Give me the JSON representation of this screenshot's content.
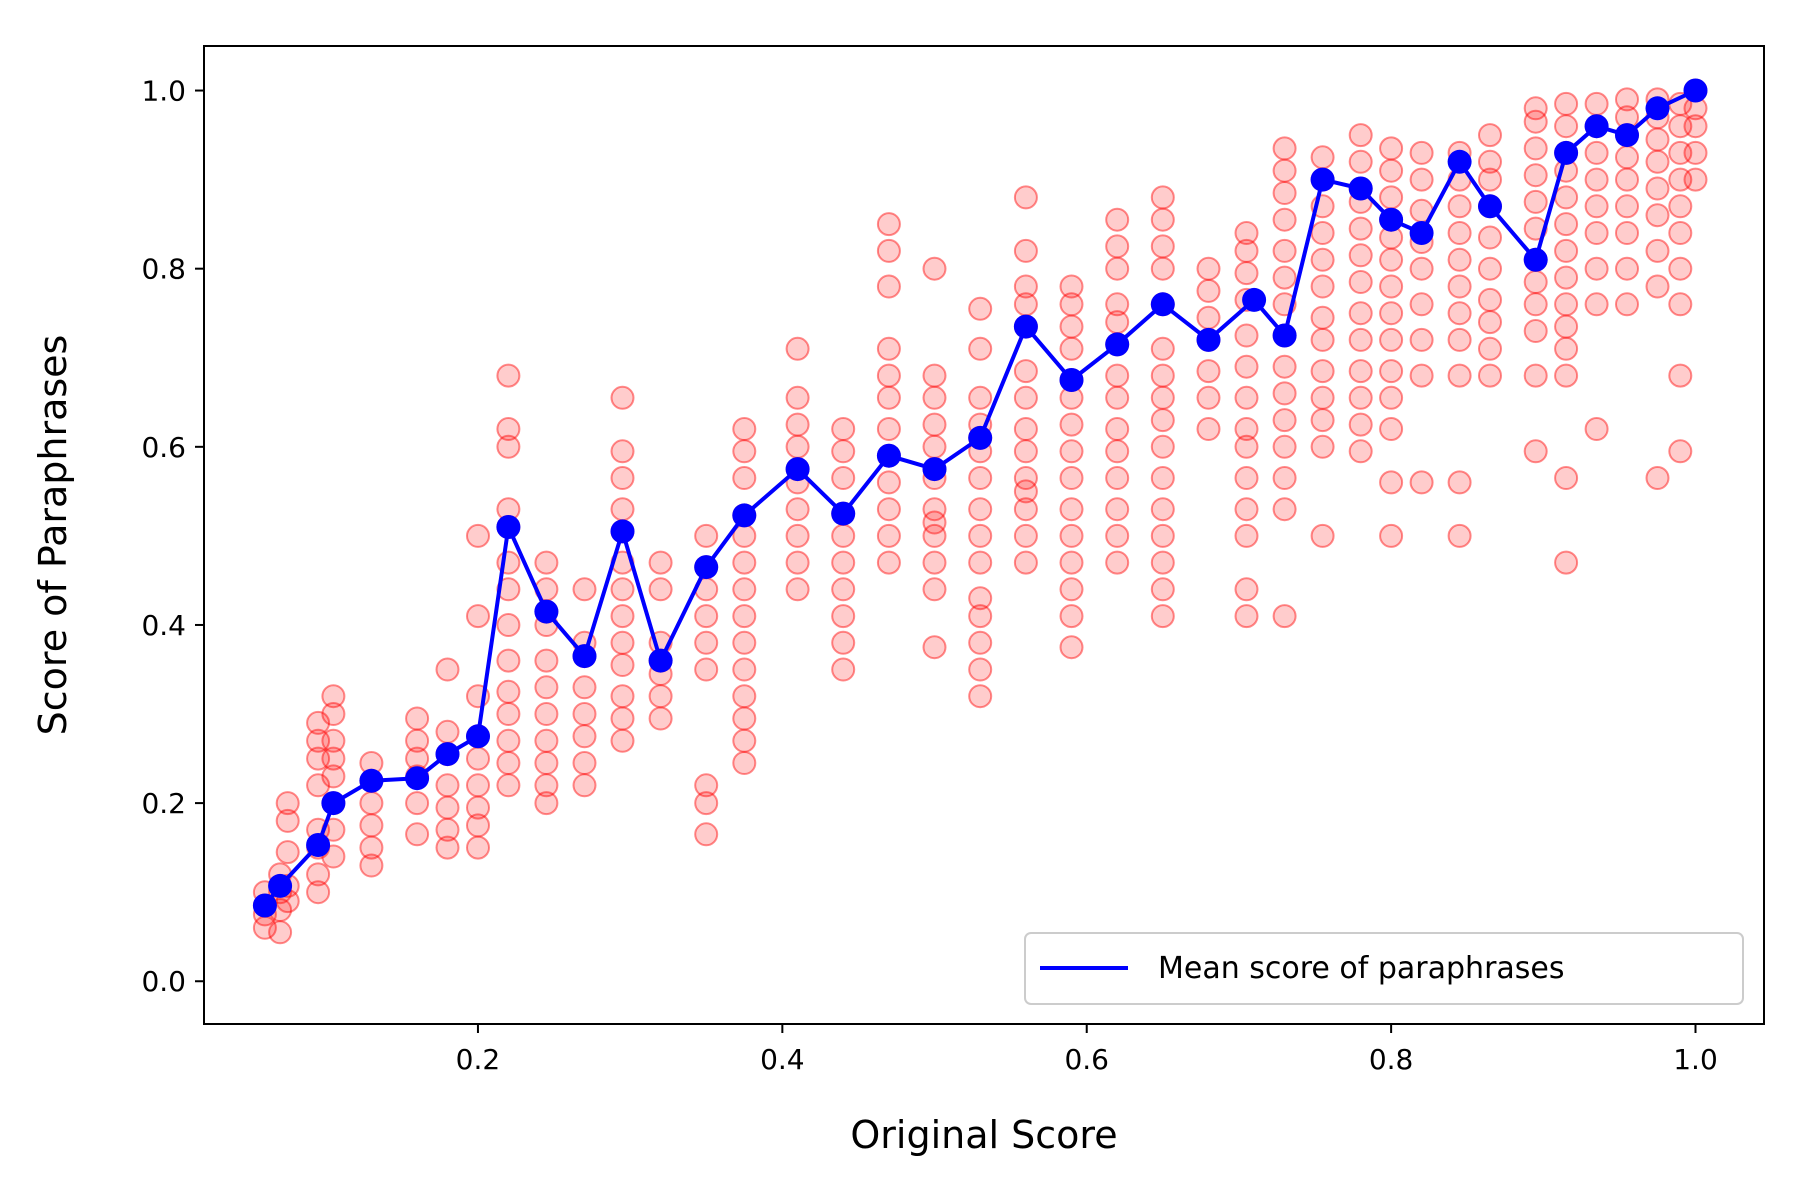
{
  "chart_data": {
    "type": "scatter",
    "xlabel": "Original Score",
    "ylabel": "Score of Paraphrases",
    "xlim": [
      0.02,
      1.045
    ],
    "ylim": [
      -0.048,
      1.05
    ],
    "xticks": [
      "0.2",
      "0.4",
      "0.6",
      "0.8",
      "1.0"
    ],
    "yticks": [
      "0.0",
      "0.2",
      "0.4",
      "0.6",
      "0.8",
      "1.0"
    ],
    "grid": false,
    "legend": {
      "position": "bottom-right",
      "entries": [
        "Mean score of paraphrases"
      ]
    },
    "colors": {
      "scatter": "#ff0000",
      "mean_line": "#0000ff"
    },
    "series": [
      {
        "name": "Mean score of paraphrases",
        "x": [
          0.06,
          0.07,
          0.095,
          0.105,
          0.13,
          0.16,
          0.18,
          0.2,
          0.22,
          0.245,
          0.27,
          0.295,
          0.32,
          0.35,
          0.375,
          0.41,
          0.44,
          0.47,
          0.5,
          0.53,
          0.56,
          0.59,
          0.62,
          0.65,
          0.68,
          0.71,
          0.73,
          0.755,
          0.78,
          0.8,
          0.82,
          0.845,
          0.865,
          0.895,
          0.915,
          0.935,
          0.955,
          0.975,
          1.0
        ],
        "y": [
          0.085,
          0.107,
          0.153,
          0.2,
          0.225,
          0.228,
          0.255,
          0.275,
          0.51,
          0.415,
          0.365,
          0.505,
          0.36,
          0.465,
          0.523,
          0.575,
          0.525,
          0.59,
          0.575,
          0.61,
          0.735,
          0.675,
          0.715,
          0.76,
          0.72,
          0.765,
          0.725,
          0.9,
          0.89,
          0.855,
          0.84,
          0.92,
          0.87,
          0.81,
          0.93,
          0.96,
          0.95,
          0.98,
          1.0
        ]
      }
    ],
    "paraphrase_scores": [
      {
        "x": 0.06,
        "y": [
          0.06,
          0.075,
          0.085,
          0.1
        ]
      },
      {
        "x": 0.07,
        "y": [
          0.055,
          0.08,
          0.1,
          0.12
        ]
      },
      {
        "x": 0.075,
        "y": [
          0.09,
          0.107,
          0.145,
          0.18,
          0.2
        ]
      },
      {
        "x": 0.095,
        "y": [
          0.1,
          0.12,
          0.15,
          0.17,
          0.22,
          0.25,
          0.27,
          0.29
        ]
      },
      {
        "x": 0.105,
        "y": [
          0.14,
          0.17,
          0.2,
          0.23,
          0.25,
          0.27,
          0.3,
          0.32
        ]
      },
      {
        "x": 0.13,
        "y": [
          0.13,
          0.15,
          0.175,
          0.2,
          0.225,
          0.245
        ]
      },
      {
        "x": 0.16,
        "y": [
          0.165,
          0.2,
          0.23,
          0.25,
          0.27,
          0.295
        ]
      },
      {
        "x": 0.18,
        "y": [
          0.15,
          0.17,
          0.195,
          0.22,
          0.255,
          0.28,
          0.35
        ]
      },
      {
        "x": 0.2,
        "y": [
          0.15,
          0.175,
          0.195,
          0.22,
          0.25,
          0.275,
          0.32,
          0.41,
          0.5
        ]
      },
      {
        "x": 0.22,
        "y": [
          0.22,
          0.245,
          0.27,
          0.3,
          0.325,
          0.36,
          0.4,
          0.44,
          0.47,
          0.51,
          0.53,
          0.6,
          0.62,
          0.68
        ]
      },
      {
        "x": 0.245,
        "y": [
          0.2,
          0.22,
          0.245,
          0.27,
          0.3,
          0.33,
          0.36,
          0.4,
          0.415,
          0.44,
          0.47
        ]
      },
      {
        "x": 0.27,
        "y": [
          0.22,
          0.245,
          0.275,
          0.3,
          0.33,
          0.365,
          0.38,
          0.44
        ]
      },
      {
        "x": 0.295,
        "y": [
          0.27,
          0.295,
          0.32,
          0.355,
          0.38,
          0.41,
          0.44,
          0.47,
          0.505,
          0.53,
          0.565,
          0.595,
          0.655
        ]
      },
      {
        "x": 0.32,
        "y": [
          0.295,
          0.32,
          0.345,
          0.36,
          0.38,
          0.44,
          0.47
        ]
      },
      {
        "x": 0.35,
        "y": [
          0.165,
          0.2,
          0.22,
          0.35,
          0.38,
          0.41,
          0.44,
          0.465,
          0.5
        ]
      },
      {
        "x": 0.375,
        "y": [
          0.245,
          0.27,
          0.295,
          0.32,
          0.35,
          0.38,
          0.41,
          0.44,
          0.47,
          0.5,
          0.523,
          0.565,
          0.595,
          0.62
        ]
      },
      {
        "x": 0.41,
        "y": [
          0.44,
          0.47,
          0.5,
          0.53,
          0.56,
          0.575,
          0.6,
          0.625,
          0.655,
          0.71
        ]
      },
      {
        "x": 0.44,
        "y": [
          0.35,
          0.38,
          0.41,
          0.44,
          0.47,
          0.5,
          0.525,
          0.565,
          0.595,
          0.62
        ]
      },
      {
        "x": 0.47,
        "y": [
          0.47,
          0.5,
          0.53,
          0.56,
          0.59,
          0.62,
          0.655,
          0.68,
          0.71,
          0.78,
          0.82,
          0.85
        ]
      },
      {
        "x": 0.5,
        "y": [
          0.375,
          0.44,
          0.47,
          0.5,
          0.515,
          0.53,
          0.565,
          0.575,
          0.6,
          0.625,
          0.655,
          0.68,
          0.8
        ]
      },
      {
        "x": 0.53,
        "y": [
          0.32,
          0.35,
          0.38,
          0.41,
          0.43,
          0.47,
          0.5,
          0.53,
          0.565,
          0.595,
          0.61,
          0.625,
          0.655,
          0.71,
          0.755
        ]
      },
      {
        "x": 0.56,
        "y": [
          0.47,
          0.5,
          0.53,
          0.55,
          0.565,
          0.595,
          0.62,
          0.655,
          0.685,
          0.735,
          0.76,
          0.78,
          0.82,
          0.88
        ]
      },
      {
        "x": 0.59,
        "y": [
          0.375,
          0.41,
          0.44,
          0.47,
          0.5,
          0.53,
          0.565,
          0.595,
          0.625,
          0.655,
          0.675,
          0.71,
          0.735,
          0.76,
          0.78
        ]
      },
      {
        "x": 0.62,
        "y": [
          0.47,
          0.5,
          0.53,
          0.565,
          0.595,
          0.62,
          0.655,
          0.68,
          0.715,
          0.74,
          0.76,
          0.8,
          0.825,
          0.855
        ]
      },
      {
        "x": 0.65,
        "y": [
          0.41,
          0.44,
          0.47,
          0.5,
          0.53,
          0.565,
          0.6,
          0.63,
          0.655,
          0.68,
          0.71,
          0.76,
          0.8,
          0.825,
          0.855,
          0.88
        ]
      },
      {
        "x": 0.68,
        "y": [
          0.62,
          0.655,
          0.685,
          0.72,
          0.745,
          0.775,
          0.8
        ]
      },
      {
        "x": 0.705,
        "y": [
          0.41,
          0.44,
          0.5,
          0.53,
          0.565,
          0.6,
          0.62,
          0.655,
          0.69,
          0.725,
          0.765,
          0.795,
          0.82,
          0.84
        ]
      },
      {
        "x": 0.73,
        "y": [
          0.41,
          0.53,
          0.565,
          0.6,
          0.63,
          0.66,
          0.69,
          0.725,
          0.76,
          0.79,
          0.82,
          0.855,
          0.885,
          0.91,
          0.935
        ]
      },
      {
        "x": 0.755,
        "y": [
          0.5,
          0.6,
          0.63,
          0.655,
          0.685,
          0.72,
          0.745,
          0.78,
          0.81,
          0.84,
          0.87,
          0.9,
          0.925
        ]
      },
      {
        "x": 0.78,
        "y": [
          0.595,
          0.625,
          0.655,
          0.685,
          0.72,
          0.75,
          0.785,
          0.815,
          0.845,
          0.875,
          0.89,
          0.92,
          0.95
        ]
      },
      {
        "x": 0.8,
        "y": [
          0.5,
          0.56,
          0.62,
          0.655,
          0.685,
          0.72,
          0.75,
          0.78,
          0.81,
          0.835,
          0.855,
          0.88,
          0.91,
          0.935
        ]
      },
      {
        "x": 0.82,
        "y": [
          0.56,
          0.68,
          0.72,
          0.76,
          0.8,
          0.83,
          0.865,
          0.9,
          0.93
        ]
      },
      {
        "x": 0.845,
        "y": [
          0.5,
          0.56,
          0.68,
          0.72,
          0.75,
          0.78,
          0.81,
          0.84,
          0.87,
          0.9,
          0.93
        ]
      },
      {
        "x": 0.865,
        "y": [
          0.68,
          0.71,
          0.74,
          0.765,
          0.8,
          0.835,
          0.87,
          0.9,
          0.92,
          0.95
        ]
      },
      {
        "x": 0.895,
        "y": [
          0.595,
          0.68,
          0.73,
          0.76,
          0.785,
          0.81,
          0.845,
          0.875,
          0.905,
          0.935,
          0.965,
          0.98
        ]
      },
      {
        "x": 0.915,
        "y": [
          0.47,
          0.565,
          0.68,
          0.71,
          0.735,
          0.76,
          0.79,
          0.82,
          0.85,
          0.88,
          0.91,
          0.93,
          0.96,
          0.985
        ]
      },
      {
        "x": 0.935,
        "y": [
          0.62,
          0.76,
          0.8,
          0.84,
          0.87,
          0.9,
          0.93,
          0.96,
          0.985
        ]
      },
      {
        "x": 0.955,
        "y": [
          0.76,
          0.8,
          0.84,
          0.87,
          0.9,
          0.925,
          0.95,
          0.97,
          0.99
        ]
      },
      {
        "x": 0.975,
        "y": [
          0.565,
          0.78,
          0.82,
          0.86,
          0.89,
          0.92,
          0.945,
          0.97,
          0.99
        ]
      },
      {
        "x": 0.99,
        "y": [
          0.595,
          0.68,
          0.76,
          0.8,
          0.84,
          0.87,
          0.9,
          0.93,
          0.96,
          0.985
        ]
      },
      {
        "x": 1.0,
        "y": [
          0.9,
          0.93,
          0.96,
          0.98,
          1.0
        ]
      }
    ]
  }
}
